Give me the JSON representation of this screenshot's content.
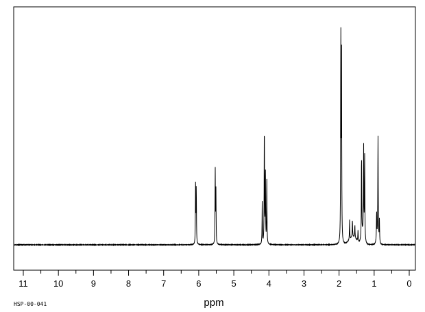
{
  "chart_data": {
    "type": "line",
    "xlabel": "ppm",
    "x_reversed": true,
    "xlim": [
      11.3,
      -0.2
    ],
    "ylim": [
      -0.02,
      1.1
    ],
    "grid": false,
    "x_ticks": [
      11,
      10,
      9,
      8,
      7,
      6,
      5,
      4,
      3,
      2,
      1,
      0
    ],
    "tick_labels": [
      "11",
      "10",
      "9",
      "8",
      "7",
      "6",
      "5",
      "4",
      "3",
      "2",
      "1",
      "0"
    ],
    "series": [
      {
        "peaks": [
          {
            "ppm": 6.09,
            "height": 0.28
          },
          {
            "ppm": 6.07,
            "height": 0.26
          },
          {
            "ppm": 5.53,
            "height": 0.34
          },
          {
            "ppm": 5.51,
            "height": 0.24
          },
          {
            "ppm": 4.19,
            "height": 0.2
          },
          {
            "ppm": 4.13,
            "height": 0.56
          },
          {
            "ppm": 4.1,
            "height": 0.35
          },
          {
            "ppm": 4.06,
            "height": 0.3
          },
          {
            "ppm": 1.95,
            "height": 1.0
          },
          {
            "ppm": 1.93,
            "height": 0.85
          },
          {
            "ppm": 1.7,
            "height": 0.09
          },
          {
            "ppm": 1.62,
            "height": 0.08
          },
          {
            "ppm": 1.55,
            "height": 0.06
          },
          {
            "ppm": 1.46,
            "height": 0.05
          },
          {
            "ppm": 1.36,
            "height": 0.39
          },
          {
            "ppm": 1.3,
            "height": 0.41
          },
          {
            "ppm": 1.27,
            "height": 0.38
          },
          {
            "ppm": 0.93,
            "height": 0.13
          },
          {
            "ppm": 0.89,
            "height": 0.48
          },
          {
            "ppm": 0.85,
            "height": 0.1
          }
        ]
      }
    ]
  },
  "footer": {
    "code": "HSP-00-041"
  }
}
